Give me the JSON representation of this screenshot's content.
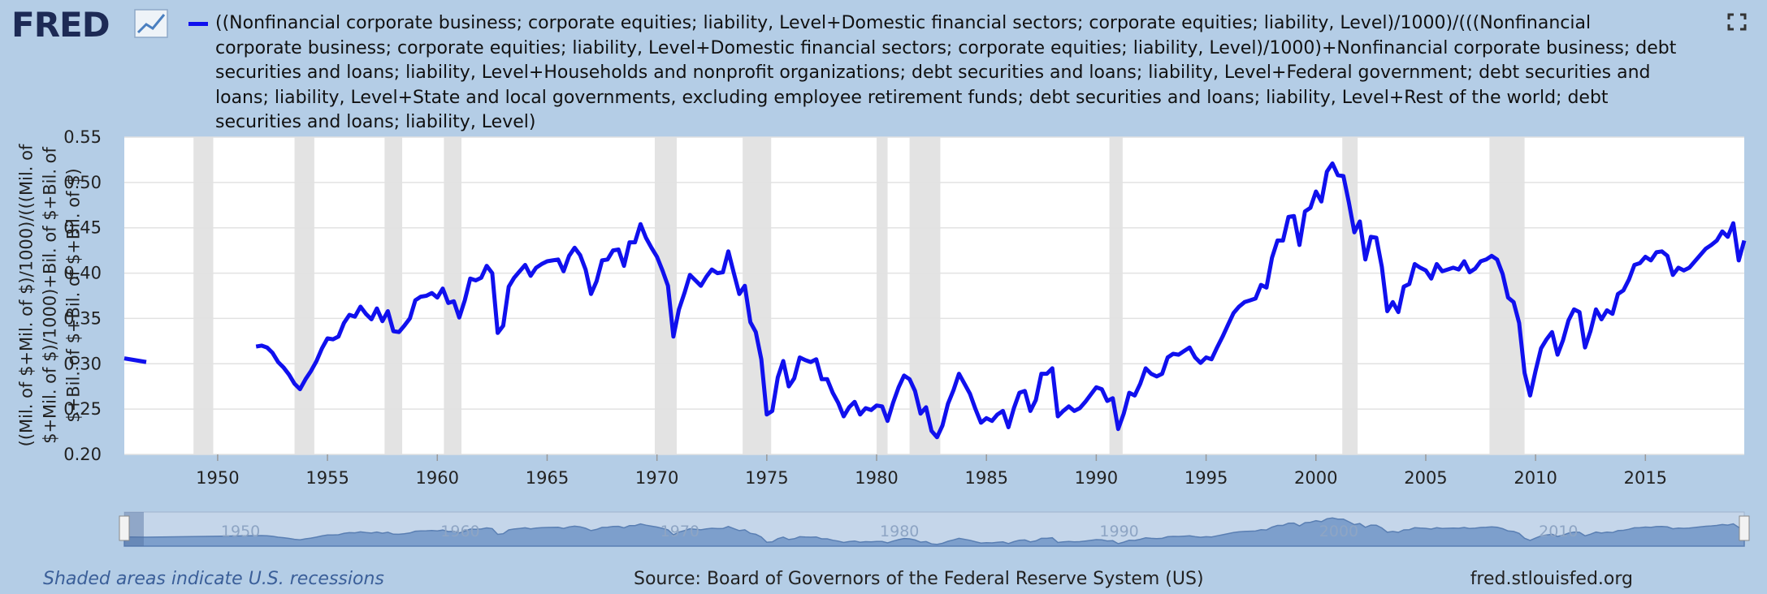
{
  "logo": "FRED",
  "chart_data": {
    "type": "line",
    "series": [
      {
        "name": "((Nonfinancial corporate business; corporate equities; liability, Level+Domestic financial sectors; corporate equities; liability, Level)/1000)/(((Nonfinancial corporate business; corporate equities; liability, Level+Domestic financial sectors; corporate equities; liability, Level)/1000)+Nonfinancial corporate business; debt securities and loans; liability, Level+Households and nonprofit organizations; debt securities and loans; liability, Level+Federal government; debt securities and loans; liability, Level+State and local governments, excluding employee retirement funds; debt securities and loans; liability, Level+Rest of the world; debt securities and loans; liability, Level)",
        "color": "#1010ee",
        "values": [
          0.306,
          0.302,
          null,
          0.319,
          0.32,
          0.318,
          0.312,
          0.302,
          0.296,
          0.288,
          0.278,
          0.272,
          0.283,
          0.292,
          0.303,
          0.317,
          0.328,
          0.327,
          0.33,
          0.345,
          0.354,
          0.352,
          0.363,
          0.355,
          0.349,
          0.361,
          0.347,
          0.358,
          0.336,
          0.335,
          0.342,
          0.35,
          0.37,
          0.374,
          0.375,
          0.378,
          0.373,
          0.383,
          0.367,
          0.369,
          0.351,
          0.37,
          0.394,
          0.392,
          0.395,
          0.408,
          0.4,
          0.334,
          0.342,
          0.385,
          0.395,
          0.402,
          0.409,
          0.397,
          0.406,
          0.41,
          0.413,
          0.414,
          0.415,
          0.402,
          0.419,
          0.428,
          0.42,
          0.404,
          0.377,
          0.391,
          0.414,
          0.415,
          0.425,
          0.426,
          0.408,
          0.434,
          0.434,
          0.454,
          0.439,
          0.428,
          0.418,
          0.403,
          0.386,
          0.33,
          0.36,
          0.378,
          0.398,
          0.392,
          0.386,
          0.396,
          0.404,
          0.4,
          0.401,
          0.424,
          0.4,
          0.377,
          0.386,
          0.346,
          0.335,
          0.305,
          0.244,
          0.248,
          0.285,
          0.303,
          0.275,
          0.284,
          0.307,
          0.304,
          0.302,
          0.305,
          0.283,
          0.283,
          0.268,
          0.257,
          0.242,
          0.252,
          0.258,
          0.244,
          0.251,
          0.249,
          0.254,
          0.253,
          0.237,
          0.257,
          0.274,
          0.287,
          0.283,
          0.27,
          0.245,
          0.252,
          0.226,
          0.219,
          0.232,
          0.256,
          0.271,
          0.289,
          0.278,
          0.267,
          0.25,
          0.235,
          0.24,
          0.237,
          0.244,
          0.248,
          0.23,
          0.251,
          0.268,
          0.27,
          0.248,
          0.26,
          0.289,
          0.289,
          0.295,
          0.242,
          0.248,
          0.253,
          0.248,
          0.251,
          0.258,
          0.266,
          0.274,
          0.272,
          0.259,
          0.262,
          0.228,
          0.245,
          0.268,
          0.265,
          0.278,
          0.295,
          0.289,
          0.286,
          0.289,
          0.307,
          0.311,
          0.31,
          0.314,
          0.318,
          0.307,
          0.301,
          0.307,
          0.305,
          0.318,
          0.33,
          0.343,
          0.356,
          0.363,
          0.368,
          0.37,
          0.372,
          0.387,
          0.384,
          0.417,
          0.436,
          0.436,
          0.462,
          0.463,
          0.431,
          0.468,
          0.472,
          0.49,
          0.479,
          0.512,
          0.521,
          0.508,
          0.507,
          0.478,
          0.445,
          0.457,
          0.415,
          0.44,
          0.439,
          0.407,
          0.358,
          0.368,
          0.357,
          0.385,
          0.388,
          0.41,
          0.406,
          0.403,
          0.394,
          0.41,
          0.402,
          0.404,
          0.406,
          0.404,
          0.413,
          0.401,
          0.405,
          0.413,
          0.415,
          0.419,
          0.415,
          0.399,
          0.373,
          0.368,
          0.345,
          0.29,
          0.265,
          0.292,
          0.317,
          0.327,
          0.335,
          0.31,
          0.326,
          0.348,
          0.36,
          0.357,
          0.318,
          0.336,
          0.36,
          0.349,
          0.359,
          0.355,
          0.377,
          0.381,
          0.393,
          0.409,
          0.411,
          0.418,
          0.414,
          0.423,
          0.424,
          0.419,
          0.398,
          0.406,
          0.403,
          0.406,
          0.413,
          0.42,
          0.427,
          0.431,
          0.436,
          0.446,
          0.44,
          0.455,
          0.414,
          0.436
        ]
      }
    ],
    "x": [
      1945.75,
      1946.75,
      1947.0,
      1951.75,
      1952.0,
      1952.25,
      1952.5,
      1952.75,
      1953.0,
      1953.25,
      1953.5,
      1953.75,
      1954.0,
      1954.25,
      1954.5,
      1954.75,
      1955.0,
      1955.25,
      1955.5,
      1955.75,
      1956.0,
      1956.25,
      1956.5,
      1956.75,
      1957.0,
      1957.25,
      1957.5,
      1957.75,
      1958.0,
      1958.25,
      1958.5,
      1958.75,
      1959.0,
      1959.25,
      1959.5,
      1959.75,
      1960.0,
      1960.25,
      1960.5,
      1960.75,
      1961.0,
      1961.25,
      1961.5,
      1961.75,
      1962.0,
      1962.25,
      1962.5,
      1962.75,
      1963.0,
      1963.25,
      1963.5,
      1963.75,
      1964.0,
      1964.25,
      1964.5,
      1964.75,
      1965.0,
      1965.25,
      1965.5,
      1965.75,
      1966.0,
      1966.25,
      1966.5,
      1966.75,
      1967.0,
      1967.25,
      1967.5,
      1967.75,
      1968.0,
      1968.25,
      1968.5,
      1968.75,
      1969.0,
      1969.25,
      1969.5,
      1969.75,
      1970.0,
      1970.25,
      1970.5,
      1970.75,
      1971.0,
      1971.25,
      1971.5,
      1971.75,
      1972.0,
      1972.25,
      1972.5,
      1972.75,
      1973.0,
      1973.25,
      1973.5,
      1973.75,
      1974.0,
      1974.25,
      1974.5,
      1974.75,
      1975.0,
      1975.25,
      1975.5,
      1975.75,
      1976.0,
      1976.25,
      1976.5,
      1976.75,
      1977.0,
      1977.25,
      1977.5,
      1977.75,
      1978.0,
      1978.25,
      1978.5,
      1978.75,
      1979.0,
      1979.25,
      1979.5,
      1979.75,
      1980.0,
      1980.25,
      1980.5,
      1980.75,
      1981.0,
      1981.25,
      1981.5,
      1981.75,
      1982.0,
      1982.25,
      1982.5,
      1982.75,
      1983.0,
      1983.25,
      1983.5,
      1983.75,
      1984.0,
      1984.25,
      1984.5,
      1984.75,
      1985.0,
      1985.25,
      1985.5,
      1985.75,
      1986.0,
      1986.25,
      1986.5,
      1986.75,
      1987.0,
      1987.25,
      1987.5,
      1987.75,
      1988.0,
      1988.25,
      1988.5,
      1988.75,
      1989.0,
      1989.25,
      1989.5,
      1989.75,
      1990.0,
      1990.25,
      1990.5,
      1990.75,
      1991.0,
      1991.25,
      1991.5,
      1991.75,
      1992.0,
      1992.25,
      1992.5,
      1992.75,
      1993.0,
      1993.25,
      1993.5,
      1993.75,
      1994.0,
      1994.25,
      1994.5,
      1994.75,
      1995.0,
      1995.25,
      1995.5,
      1995.75,
      1996.0,
      1996.25,
      1996.5,
      1996.75,
      1997.0,
      1997.25,
      1997.5,
      1997.75,
      1998.0,
      1998.25,
      1998.5,
      1998.75,
      1999.0,
      1999.25,
      1999.5,
      1999.75,
      2000.0,
      2000.25,
      2000.5,
      2000.75,
      2001.0,
      2001.25,
      2001.5,
      2001.75,
      2002.0,
      2002.25,
      2002.5,
      2002.75,
      2003.0,
      2003.25,
      2003.5,
      2003.75,
      2004.0,
      2004.25,
      2004.5,
      2004.75,
      2005.0,
      2005.25,
      2005.5,
      2005.75,
      2006.0,
      2006.25,
      2006.5,
      2006.75,
      2007.0,
      2007.25,
      2007.5,
      2007.75,
      2008.0,
      2008.25,
      2008.5,
      2008.75,
      2009.0,
      2009.25,
      2009.5,
      2009.75,
      2010.0,
      2010.25,
      2010.5,
      2010.75,
      2011.0,
      2011.25,
      2011.5,
      2011.75,
      2012.0,
      2012.25,
      2012.5,
      2012.75,
      2013.0,
      2013.25,
      2013.5,
      2013.75,
      2014.0,
      2014.25,
      2014.5,
      2014.75,
      2015.0,
      2015.25,
      2015.5,
      2015.75,
      2016.0,
      2016.25,
      2016.5,
      2016.75,
      2017.0,
      2017.25,
      2017.5,
      2017.75,
      2018.0,
      2018.25,
      2018.5,
      2018.75,
      2019.0,
      2019.25,
      2019.5
    ],
    "xlim": [
      1945.75,
      2019.5
    ],
    "xticks": [
      1950,
      1955,
      1960,
      1965,
      1970,
      1975,
      1980,
      1985,
      1990,
      1995,
      2000,
      2005,
      2010,
      2015
    ],
    "ylim": [
      0.2,
      0.55
    ],
    "yticks": [
      {
        "value": 0.2,
        "label": "0.20"
      },
      0.25,
      {
        "value": 0.3,
        "label": "0.30"
      },
      0.35,
      {
        "value": 0.4,
        "label": "0.40"
      },
      0.45,
      {
        "value": 0.5,
        "label": "0.50"
      },
      0.55
    ],
    "y_label": "((Mil. of $+Mil. of $)/1000)/(((Mil. of $+Mil. of $)/1000)+Bil. of $+Bil. of $+Bil. of $+Bil. of $+Bil. of $)",
    "grid": true,
    "recessions": [
      {
        "start": 1948.9,
        "end": 1949.8
      },
      {
        "start": 1953.5,
        "end": 1954.4
      },
      {
        "start": 1957.6,
        "end": 1958.4
      },
      {
        "start": 1960.3,
        "end": 1961.1
      },
      {
        "start": 1969.9,
        "end": 1970.9
      },
      {
        "start": 1973.9,
        "end": 1975.2
      },
      {
        "start": 1980.0,
        "end": 1980.5
      },
      {
        "start": 1981.5,
        "end": 1982.9
      },
      {
        "start": 1990.6,
        "end": 1991.2
      },
      {
        "start": 2001.2,
        "end": 2001.9
      },
      {
        "start": 2007.9,
        "end": 2009.5
      }
    ],
    "navigator_ticks": [
      1950,
      1960,
      1970,
      1980,
      1990,
      2000,
      2010
    ],
    "recession_note": "Shaded areas indicate U.S. recessions",
    "source": "Source: Board of Governors of the Federal Reserve System (US)",
    "site": "fred.stlouisfed.org"
  }
}
